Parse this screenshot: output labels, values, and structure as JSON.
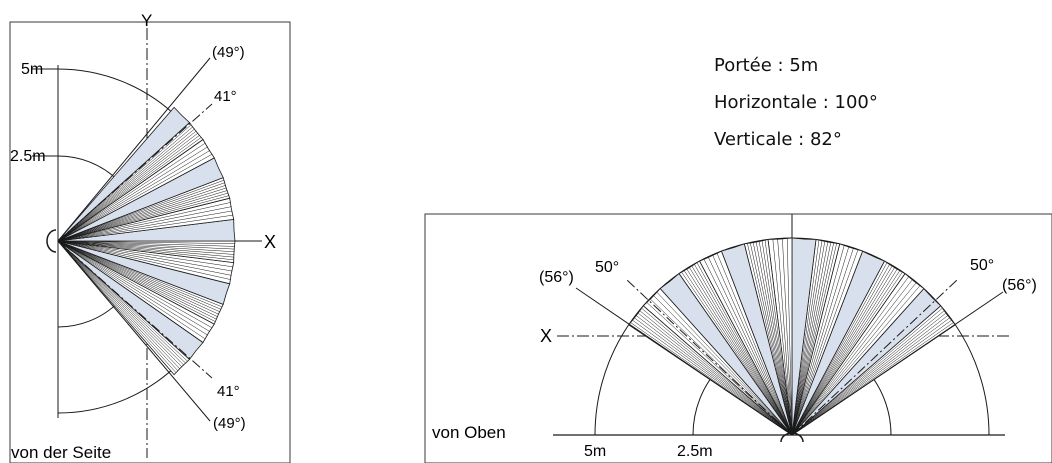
{
  "specs": {
    "range": "Portée : 5m",
    "horizontal": "Horizontale : 100°",
    "vertical": "Verticale : 82°"
  },
  "side_view": {
    "caption": "von der Seite",
    "axis_y": "Y",
    "axis_x": "X",
    "r_outer": "5m",
    "r_inner": "2.5m",
    "angle_top_outer": "(49°)",
    "angle_top_inner": "41°",
    "angle_bottom_inner": "41°",
    "angle_bottom_outer": "(49°)"
  },
  "top_view": {
    "caption": "von Oben",
    "axis_x": "X",
    "r_outer": "5m",
    "r_inner": "2.5m",
    "angle_left_outer": "(56°)",
    "angle_left_inner": "50°",
    "angle_right_inner": "50°",
    "angle_right_outer": "(56°)"
  },
  "colors": {
    "line": "#1a1a1a",
    "zone_fill": "#d7e0ec",
    "frame": "#3a3a3a"
  }
}
